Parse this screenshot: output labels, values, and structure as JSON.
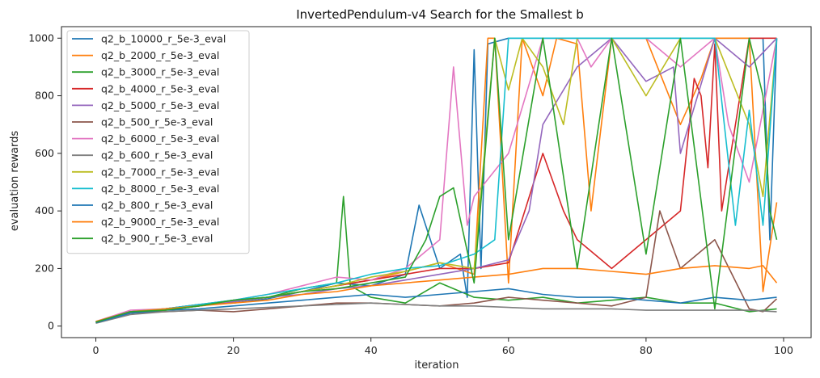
{
  "chart_data": {
    "type": "line",
    "title": "InvertedPendulum-v4 Search for the Smallest b",
    "xlabel": "iteration",
    "ylabel": "evaluation rewards",
    "xlim": [
      -5,
      104
    ],
    "ylim": [
      -40,
      1040
    ],
    "xticks": [
      0,
      20,
      40,
      60,
      80,
      100
    ],
    "yticks": [
      0,
      200,
      400,
      600,
      800,
      1000
    ],
    "grid": false,
    "legend": "upper-left",
    "series": [
      {
        "name": "q2_b_10000_r_5e-3_eval",
        "color": "#1f77b4",
        "x": [
          0,
          5,
          10,
          15,
          20,
          25,
          30,
          35,
          40,
          45,
          47,
          50,
          53,
          54,
          55,
          56,
          57,
          60,
          62,
          65,
          70,
          75,
          80,
          85,
          90,
          95,
          97,
          98,
          99
        ],
        "values": [
          14,
          50,
          60,
          75,
          80,
          95,
          120,
          150,
          140,
          180,
          420,
          200,
          250,
          100,
          960,
          200,
          980,
          1000,
          1000,
          1000,
          1000,
          1000,
          1000,
          1000,
          1000,
          1000,
          1000,
          300,
          1000
        ]
      },
      {
        "name": "q2_b_2000_r_5e-3_eval",
        "color": "#ff7f0e",
        "x": [
          0,
          5,
          10,
          15,
          20,
          25,
          30,
          35,
          40,
          45,
          50,
          55,
          57,
          58,
          60,
          62,
          65,
          67,
          70,
          72,
          75,
          80,
          85,
          88,
          90,
          95,
          97,
          99
        ],
        "values": [
          15,
          45,
          55,
          70,
          85,
          100,
          120,
          140,
          160,
          190,
          220,
          180,
          1000,
          1000,
          150,
          1000,
          800,
          1000,
          980,
          400,
          1000,
          1000,
          700,
          860,
          1000,
          1000,
          120,
          430
        ]
      },
      {
        "name": "q2_b_3000_r_5e-3_eval",
        "color": "#2ca02c",
        "x": [
          0,
          5,
          10,
          15,
          20,
          25,
          30,
          35,
          36,
          37,
          40,
          45,
          50,
          55,
          60,
          65,
          70,
          75,
          80,
          85,
          90,
          95,
          99
        ],
        "values": [
          14,
          45,
          60,
          75,
          90,
          100,
          130,
          150,
          450,
          140,
          100,
          80,
          150,
          100,
          90,
          100,
          80,
          90,
          100,
          80,
          80,
          50,
          60
        ]
      },
      {
        "name": "q2_b_4000_r_5e-3_eval",
        "color": "#d62728",
        "x": [
          0,
          5,
          10,
          15,
          20,
          25,
          30,
          35,
          40,
          45,
          50,
          55,
          60,
          65,
          68,
          70,
          75,
          80,
          85,
          87,
          88,
          89,
          90,
          91,
          95,
          99
        ],
        "values": [
          12,
          45,
          55,
          70,
          85,
          100,
          120,
          140,
          160,
          180,
          200,
          200,
          220,
          600,
          400,
          300,
          200,
          300,
          400,
          860,
          800,
          550,
          980,
          400,
          1000,
          1000
        ]
      },
      {
        "name": "q2_b_5000_r_5e-3_eval",
        "color": "#9467bd",
        "x": [
          0,
          5,
          10,
          15,
          20,
          25,
          30,
          35,
          40,
          45,
          50,
          55,
          60,
          63,
          65,
          70,
          75,
          80,
          84,
          85,
          90,
          95,
          99
        ],
        "values": [
          13,
          50,
          60,
          75,
          85,
          100,
          110,
          130,
          140,
          160,
          180,
          200,
          230,
          400,
          700,
          900,
          1000,
          850,
          900,
          600,
          1000,
          900,
          1000
        ]
      },
      {
        "name": "q2_b_500_r_5e-3_eval",
        "color": "#8c564b",
        "x": [
          0,
          5,
          10,
          15,
          20,
          25,
          30,
          35,
          40,
          45,
          50,
          55,
          60,
          65,
          70,
          75,
          80,
          82,
          85,
          90,
          95,
          97,
          99
        ],
        "values": [
          12,
          45,
          50,
          55,
          50,
          60,
          70,
          80,
          80,
          75,
          70,
          80,
          100,
          90,
          80,
          70,
          100,
          400,
          200,
          300,
          60,
          50,
          95
        ]
      },
      {
        "name": "q2_b_6000_r_5e-3_eval",
        "color": "#e377c2",
        "x": [
          0,
          5,
          10,
          15,
          20,
          25,
          30,
          35,
          40,
          45,
          50,
          52,
          54,
          55,
          60,
          65,
          70,
          72,
          75,
          80,
          85,
          90,
          92,
          95,
          99
        ],
        "values": [
          16,
          55,
          60,
          70,
          90,
          110,
          140,
          170,
          160,
          200,
          300,
          900,
          350,
          450,
          600,
          1000,
          1000,
          900,
          1000,
          1000,
          900,
          1000,
          700,
          500,
          1000
        ]
      },
      {
        "name": "q2_b_600_r_5e-3_eval",
        "color": "#7f7f7f",
        "x": [
          0,
          5,
          10,
          15,
          20,
          25,
          30,
          35,
          40,
          45,
          50,
          55,
          60,
          65,
          70,
          75,
          80,
          85,
          90,
          95,
          99
        ],
        "values": [
          10,
          40,
          50,
          55,
          60,
          65,
          70,
          75,
          80,
          75,
          70,
          70,
          65,
          60,
          60,
          60,
          55,
          55,
          55,
          55,
          50
        ]
      },
      {
        "name": "q2_b_7000_r_5e-3_eval",
        "color": "#bcbd22",
        "x": [
          0,
          5,
          10,
          15,
          20,
          25,
          30,
          35,
          40,
          45,
          50,
          55,
          58,
          60,
          62,
          65,
          68,
          70,
          75,
          80,
          85,
          90,
          95,
          97,
          99
        ],
        "values": [
          14,
          50,
          55,
          70,
          90,
          100,
          120,
          140,
          170,
          190,
          220,
          200,
          1000,
          820,
          1000,
          900,
          700,
          1000,
          1000,
          800,
          1000,
          1000,
          700,
          450,
          1000
        ]
      },
      {
        "name": "q2_b_8000_r_5e-3_eval",
        "color": "#17becf",
        "x": [
          0,
          5,
          10,
          15,
          20,
          25,
          30,
          35,
          40,
          45,
          50,
          55,
          58,
          60,
          62,
          65,
          70,
          75,
          80,
          85,
          90,
          93,
          95,
          97,
          99
        ],
        "values": [
          15,
          50,
          60,
          75,
          90,
          110,
          130,
          150,
          180,
          200,
          210,
          250,
          300,
          1000,
          1000,
          1000,
          1000,
          1000,
          1000,
          1000,
          1000,
          350,
          750,
          350,
          1000
        ]
      },
      {
        "name": "q2_b_800_r_5e-3_eval",
        "color": "#1f77b4",
        "x": [
          0,
          5,
          10,
          15,
          20,
          25,
          30,
          35,
          40,
          45,
          50,
          55,
          60,
          65,
          70,
          75,
          80,
          85,
          90,
          95,
          99
        ],
        "values": [
          12,
          45,
          55,
          60,
          70,
          80,
          90,
          100,
          110,
          100,
          110,
          120,
          130,
          110,
          100,
          100,
          90,
          80,
          100,
          90,
          100
        ]
      },
      {
        "name": "q2_b_9000_r_5e-3_eval",
        "color": "#ff7f0e",
        "x": [
          0,
          5,
          10,
          15,
          20,
          25,
          30,
          35,
          40,
          45,
          50,
          55,
          60,
          65,
          70,
          75,
          80,
          85,
          90,
          95,
          97,
          99
        ],
        "values": [
          16,
          50,
          60,
          70,
          80,
          90,
          110,
          120,
          140,
          150,
          160,
          170,
          180,
          200,
          200,
          190,
          180,
          200,
          210,
          200,
          210,
          150
        ]
      },
      {
        "name": "q2_b_900_r_5e-3_eval",
        "color": "#2ca02c",
        "x": [
          0,
          5,
          10,
          15,
          20,
          25,
          30,
          35,
          40,
          45,
          48,
          50,
          52,
          55,
          58,
          60,
          65,
          70,
          75,
          80,
          85,
          90,
          95,
          97,
          98,
          99
        ],
        "values": [
          14,
          50,
          55,
          70,
          90,
          100,
          120,
          130,
          150,
          170,
          300,
          450,
          480,
          150,
          1000,
          300,
          1000,
          200,
          1000,
          250,
          1000,
          60,
          1000,
          800,
          400,
          300
        ]
      }
    ]
  }
}
